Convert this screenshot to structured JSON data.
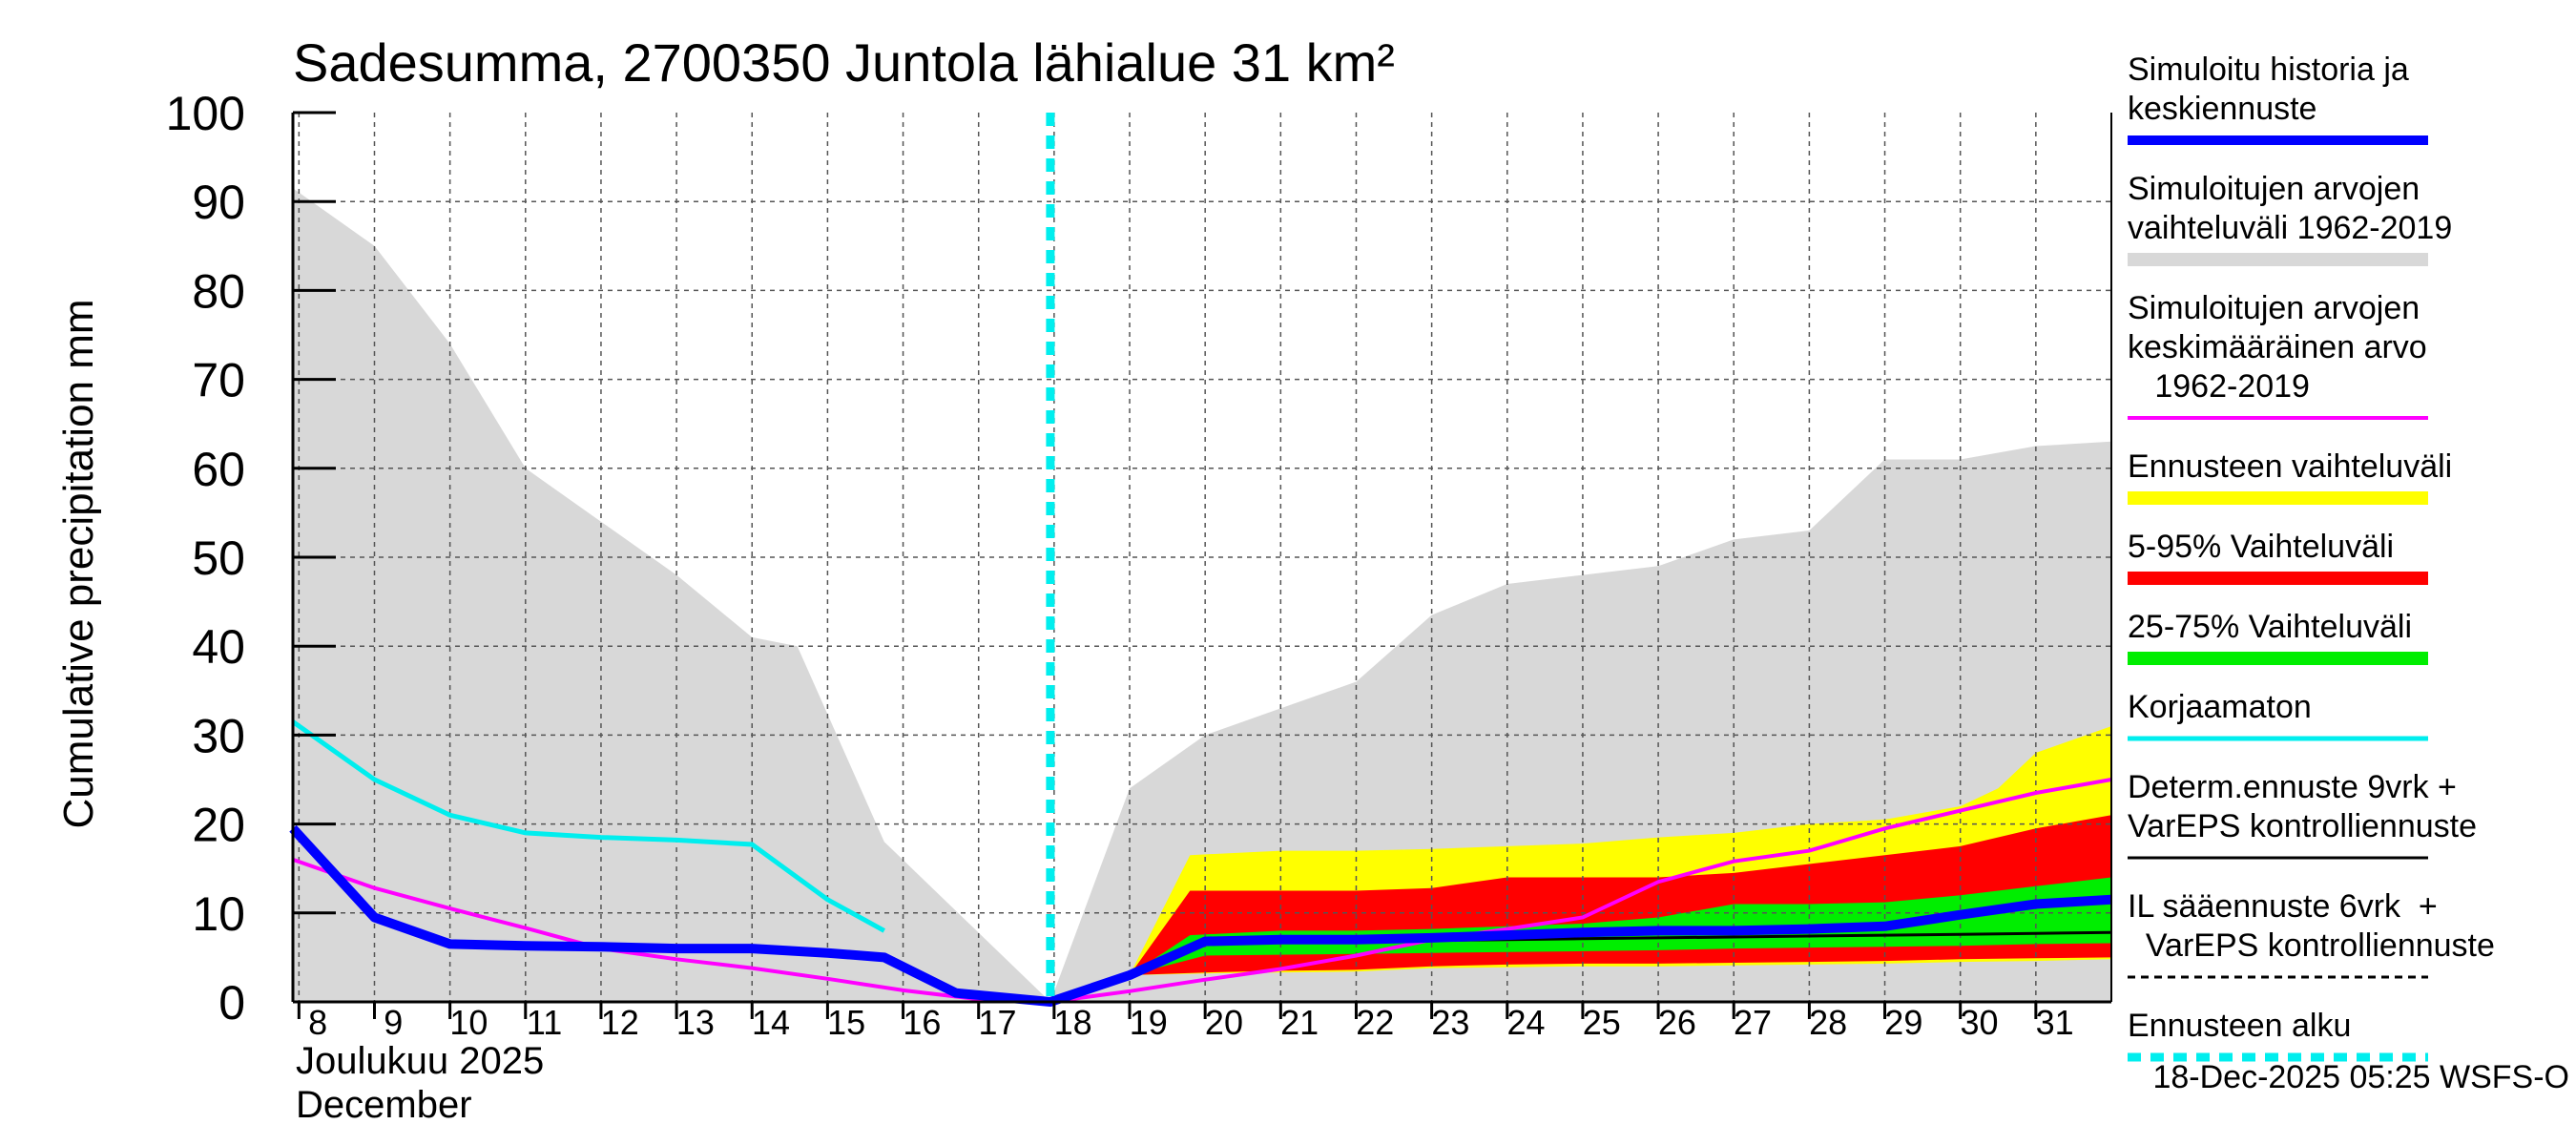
{
  "chart_data": {
    "type": "area",
    "title": "Sadesumma, 2700350 Juntola lähialue 31 km²",
    "ylabel": "Cumulative precipitation   mm",
    "xlabel_line1": "Joulukuu  2025",
    "xlabel_line2": "December",
    "ylim": [
      0,
      100
    ],
    "yticks": [
      0,
      10,
      20,
      30,
      40,
      50,
      60,
      70,
      80,
      90,
      100
    ],
    "x_range": [
      7.92,
      32.0
    ],
    "xtick_days": [
      8,
      9,
      10,
      11,
      12,
      13,
      14,
      15,
      16,
      17,
      18,
      19,
      20,
      21,
      22,
      23,
      24,
      25,
      26,
      27,
      28,
      29,
      30,
      31
    ],
    "xtick_labels": [
      "8",
      "9",
      "10",
      "11",
      "12",
      "13",
      "14",
      "15",
      "16",
      "17",
      "18",
      "19",
      "20",
      "21",
      "22",
      "23",
      "24",
      "25",
      "26",
      "27",
      "28",
      "29",
      "30",
      "31"
    ],
    "forecast_start_day": 17.95,
    "footer": "18-Dec-2025 05:25 WSFS-O",
    "colors": {
      "history_range": "#d8d8d8",
      "forecast_range": "#ffff00",
      "p5_95": "#ff0000",
      "p25_75": "#00ee00",
      "sim_history": "#0000ff",
      "mean": "#ff00ff",
      "uncorrected": "#00eeee",
      "determ": "#000000",
      "forecast_start": "#00eeee"
    },
    "series": {
      "history_range_upper": {
        "x": [
          7.92,
          9,
          10,
          11,
          12,
          13,
          14,
          14.6,
          15.75,
          17.95,
          19,
          20,
          21,
          22,
          23,
          24,
          25,
          26,
          27,
          28,
          29,
          30,
          31,
          32
        ],
        "y": [
          91.5,
          85,
          74,
          60,
          54,
          48,
          41,
          40,
          18,
          0,
          24,
          30,
          33,
          36,
          43.5,
          47,
          48,
          49,
          52,
          53,
          61,
          61,
          62.5,
          63
        ]
      },
      "history_range_lower": {
        "x": [
          7.92,
          17.95,
          19,
          32
        ],
        "y": [
          0,
          0,
          0,
          0
        ]
      },
      "forecast_range_upper": {
        "x": [
          17.95,
          19,
          19.8,
          21,
          22,
          23,
          24,
          25,
          26,
          27,
          28,
          29,
          30,
          30.5,
          31,
          32
        ],
        "y": [
          0,
          3,
          16.5,
          17,
          17,
          17.2,
          17.5,
          17.8,
          18.5,
          19,
          20,
          20.5,
          22,
          24,
          28,
          31
        ]
      },
      "forecast_range_lower": {
        "x": [
          17.95,
          19,
          20,
          21,
          22,
          23,
          24,
          25,
          26,
          27,
          28,
          29,
          30,
          31,
          32
        ],
        "y": [
          0,
          3,
          3.2,
          3.3,
          3.4,
          3.8,
          3.9,
          4,
          4,
          4.1,
          4.2,
          4.3,
          4.5,
          4.6,
          4.8
        ]
      },
      "p5_95_upper": {
        "x": [
          17.95,
          19,
          19.8,
          21,
          22,
          23,
          24,
          25,
          26,
          27,
          28,
          29,
          30,
          31,
          32
        ],
        "y": [
          0,
          3,
          12.5,
          12.5,
          12.5,
          12.8,
          14,
          14,
          14,
          14.5,
          15.5,
          16.5,
          17.5,
          19.5,
          21
        ]
      },
      "p5_95_lower": {
        "x": [
          17.95,
          19,
          20,
          21,
          22,
          23,
          24,
          25,
          26,
          27,
          28,
          29,
          30,
          31,
          32
        ],
        "y": [
          0,
          3,
          3.3,
          3.5,
          3.6,
          4,
          4.2,
          4.3,
          4.3,
          4.4,
          4.5,
          4.6,
          4.8,
          4.9,
          5
        ]
      },
      "p25_75_upper": {
        "x": [
          17.95,
          19,
          19.8,
          21,
          22,
          23,
          24,
          25,
          26,
          27,
          28,
          29,
          30,
          31,
          32
        ],
        "y": [
          0,
          3,
          7.5,
          8,
          8,
          8.2,
          8.5,
          8.8,
          9.5,
          11,
          11,
          11.2,
          12,
          13,
          14
        ]
      },
      "p25_75_lower": {
        "x": [
          17.95,
          19,
          20,
          21,
          22,
          23,
          24,
          25,
          26,
          27,
          28,
          29,
          30,
          31,
          32
        ],
        "y": [
          0,
          3,
          5.2,
          5.3,
          5.4,
          5.5,
          5.6,
          5.7,
          5.8,
          6,
          6.1,
          6.2,
          6.3,
          6.5,
          6.6
        ]
      },
      "sim_history": {
        "x": [
          7.92,
          9,
          10,
          11,
          12,
          13,
          14,
          15,
          15.75,
          16.7,
          17.95,
          19,
          20,
          21,
          22,
          23,
          24,
          25,
          26,
          27,
          28,
          29,
          30,
          31,
          32
        ],
        "y": [
          19.5,
          9.5,
          6.5,
          6.3,
          6.2,
          6,
          6,
          5.5,
          5,
          1,
          0,
          3,
          6.8,
          7,
          7,
          7.2,
          7.5,
          7.8,
          8,
          8,
          8.2,
          8.5,
          9.8,
          11,
          11.5
        ]
      },
      "mean": {
        "x": [
          7.92,
          9,
          10,
          11,
          12,
          13,
          14,
          15,
          16,
          17,
          17.95,
          19,
          20,
          21,
          22,
          23,
          24,
          25,
          26,
          27,
          28,
          29,
          30,
          31,
          32
        ],
        "y": [
          16,
          12.8,
          10.5,
          8.3,
          6,
          4.8,
          3.8,
          2.6,
          1.3,
          0.3,
          0,
          1.2,
          2.5,
          3.7,
          5.2,
          7,
          8.2,
          9.5,
          13.5,
          15.8,
          17,
          19.5,
          21.5,
          23.5,
          25
        ]
      },
      "uncorrected": {
        "x": [
          7.92,
          9,
          10,
          11,
          12,
          13,
          14,
          15,
          15.75
        ],
        "y": [
          31.5,
          25,
          21,
          19,
          18.5,
          18.2,
          17.7,
          11.5,
          8
        ]
      },
      "determ": {
        "x": [
          17.95,
          19,
          20,
          21,
          22,
          23,
          24,
          25,
          26,
          27,
          28,
          29,
          30,
          31,
          32
        ],
        "y": [
          0,
          3,
          6.5,
          6.7,
          6.8,
          6.9,
          7,
          7.1,
          7.2,
          7.3,
          7.4,
          7.5,
          7.6,
          7.7,
          7.8
        ]
      }
    },
    "legend": [
      {
        "key": "sim_history",
        "lines": [
          "Simuloitu historia ja",
          "keskiennuste"
        ]
      },
      {
        "key": "history_range",
        "lines": [
          "Simuloitujen arvojen",
          "vaihteluväli 1962-2019"
        ]
      },
      {
        "key": "mean",
        "lines": [
          "Simuloitujen arvojen",
          "keskimääräinen arvo",
          "   1962-2019"
        ]
      },
      {
        "key": "forecast_range",
        "lines": [
          "Ennusteen vaihteluväli"
        ]
      },
      {
        "key": "p5_95",
        "lines": [
          "5-95% Vaihteluväli"
        ]
      },
      {
        "key": "p25_75",
        "lines": [
          "25-75% Vaihteluväli"
        ]
      },
      {
        "key": "uncorrected",
        "lines": [
          "Korjaamaton"
        ]
      },
      {
        "key": "determ",
        "lines": [
          "Determ.ennuste 9vrk +",
          "VarEPS kontrolliennuste"
        ]
      },
      {
        "key": "il",
        "lines": [
          "IL sääennuste 6vrk  +",
          "  VarEPS kontrolliennuste"
        ]
      },
      {
        "key": "forecast_start",
        "lines": [
          "Ennusteen alku"
        ]
      }
    ]
  }
}
